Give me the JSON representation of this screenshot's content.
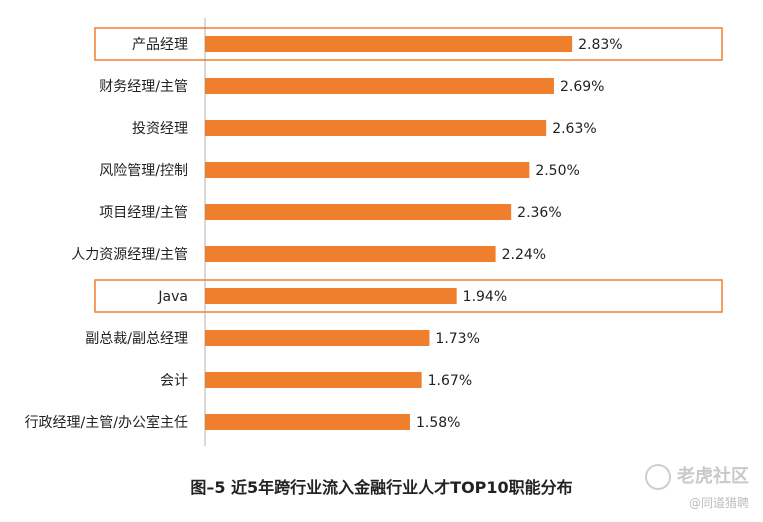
{
  "chart_data": {
    "type": "bar",
    "orientation": "horizontal",
    "title": "图–5 近5年跨行业流入金融行业人才TOP10职能分布",
    "categories": [
      "产品经理",
      "财务经理/主管",
      "投资经理",
      "风险管理/控制",
      "项目经理/主管",
      "人力资源经理/主管",
      "Java",
      "副总裁/副总经理",
      "会计",
      "行政经理/主管/办公室主任"
    ],
    "values": [
      2.83,
      2.69,
      2.63,
      2.5,
      2.36,
      2.24,
      1.94,
      1.73,
      1.67,
      1.58
    ],
    "value_labels": [
      "2.83%",
      "2.69%",
      "2.63%",
      "2.50%",
      "2.36%",
      "2.24%",
      "1.94%",
      "1.73%",
      "1.67%",
      "1.58%"
    ],
    "highlighted": [
      "产品经理",
      "Java"
    ],
    "xlim": [
      0,
      3.7
    ],
    "xlabel": "",
    "ylabel": "",
    "grid": false,
    "bar_color": "#f07f2d",
    "highlight_color": "#f07f2d"
  },
  "watermark": {
    "brand": "老虎社区",
    "sub": "@同道猎聘"
  }
}
